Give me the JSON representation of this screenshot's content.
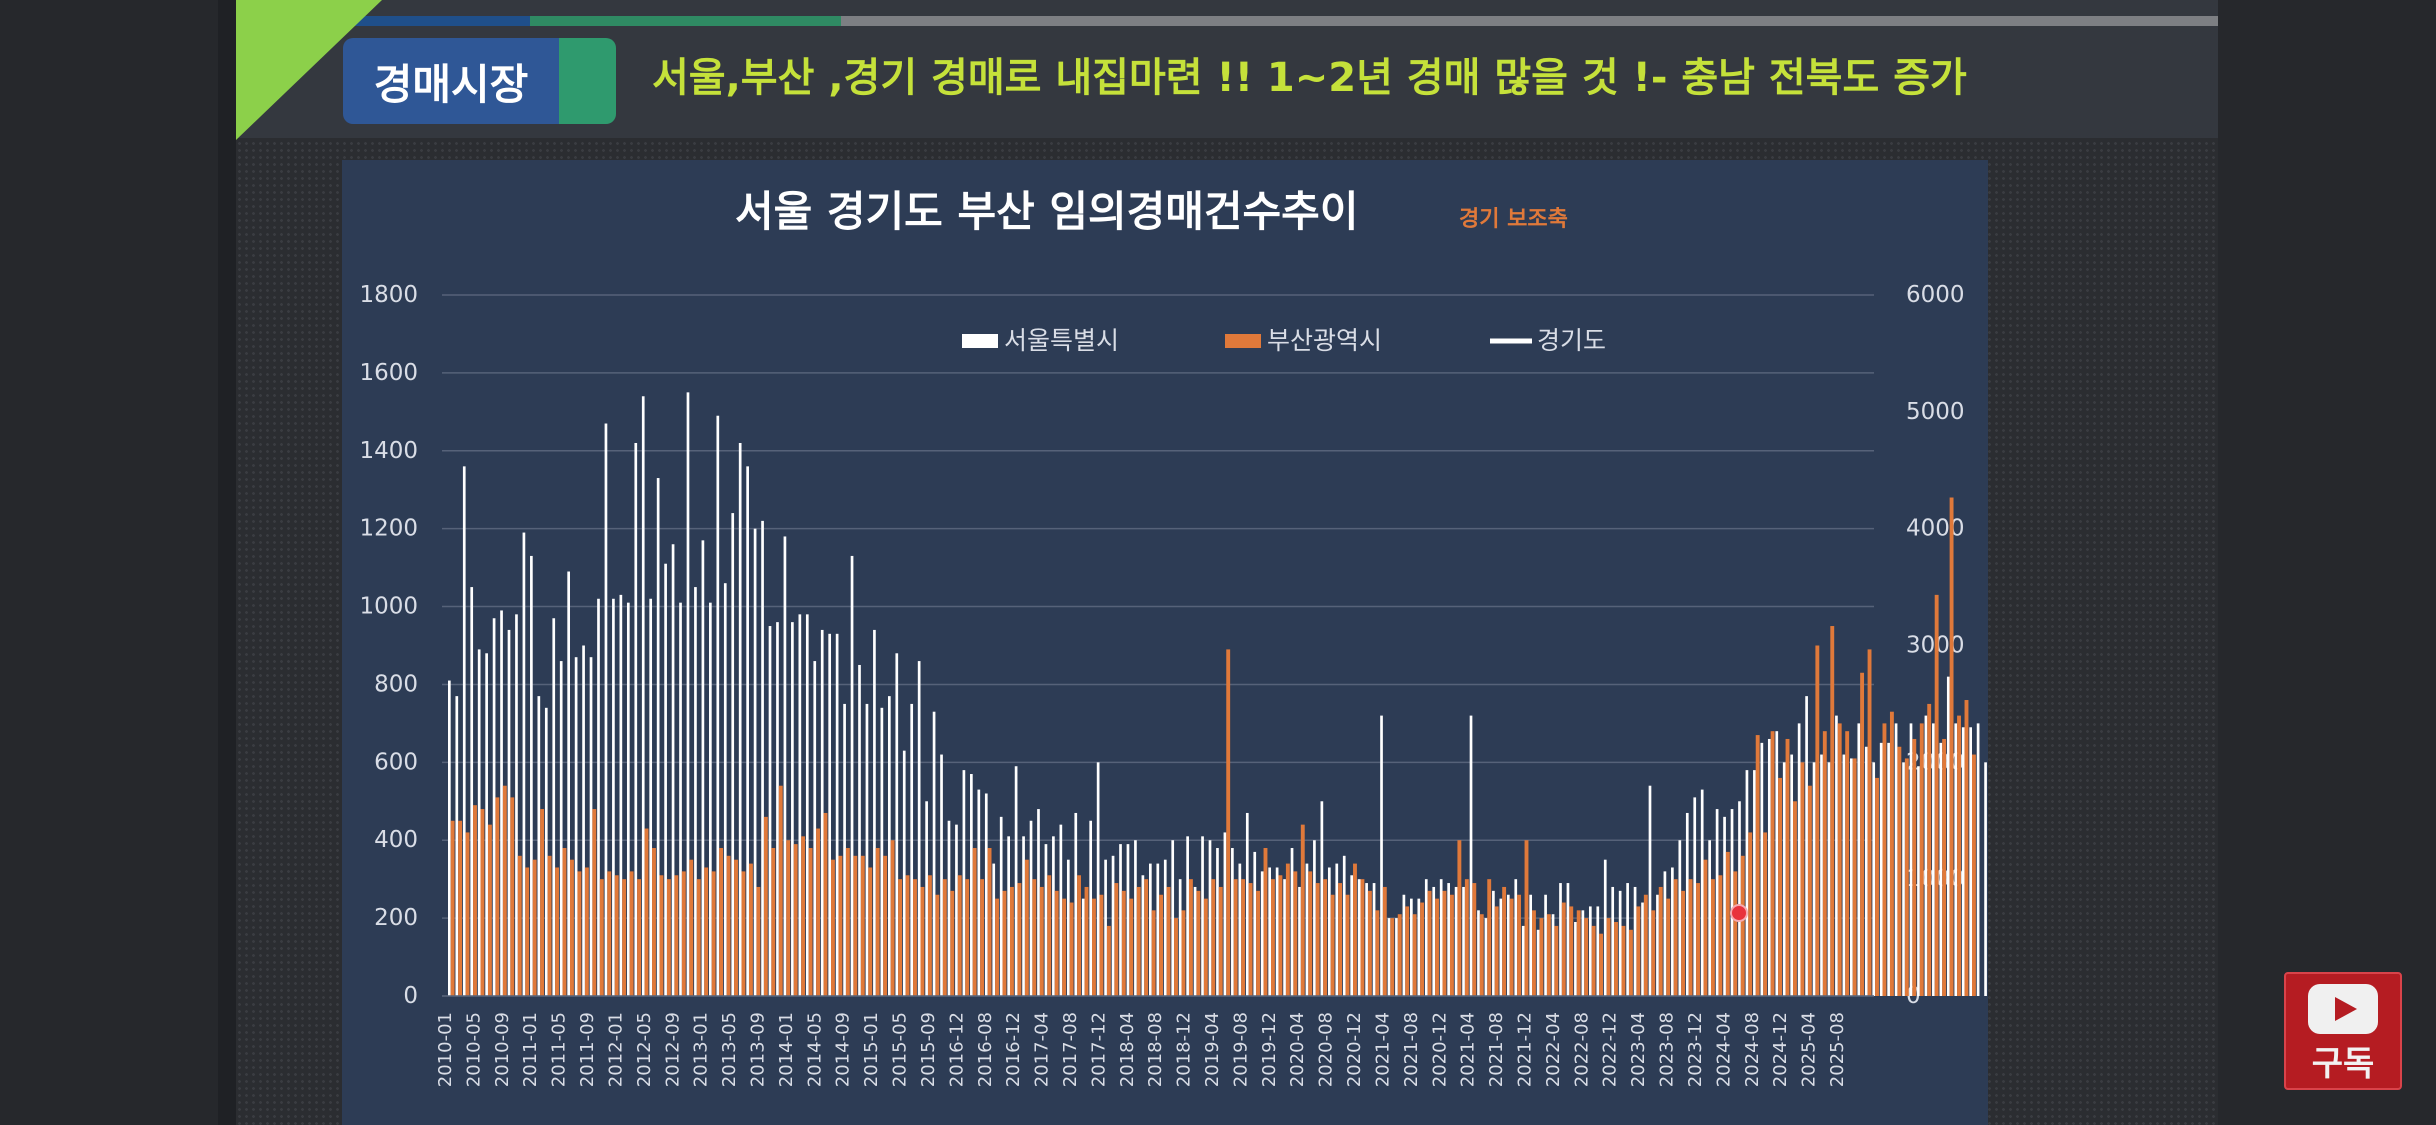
{
  "video": {
    "badge_label": "경매시장",
    "headline": "서울,부산 ,경기  경매로 내집마련 !!  1~2년 경매 많을 것 !- 충남 전북도 증가",
    "subscribe_label": "구독"
  },
  "chart_data": {
    "type": "bar",
    "title": "서울 경기도 부산 임의경매건수추이",
    "subtitle": "경기 보조축",
    "xlabel": "",
    "ylabel": "",
    "ylim": [
      0,
      1800
    ],
    "y_ticks": [
      0,
      200,
      400,
      600,
      800,
      1000,
      1200,
      1400,
      1600,
      1800
    ],
    "y2lim": [
      0,
      6000
    ],
    "y2_ticks": [
      0,
      1000,
      2000,
      3000,
      4000,
      5000,
      6000
    ],
    "grid": true,
    "legend_position": "top-center",
    "start_month": "2010-01",
    "x_tick_labels": [
      "2010-01",
      "2010-05",
      "2010-09",
      "2011-01",
      "2011-05",
      "2011-09",
      "2012-01",
      "2012-05",
      "2012-09",
      "2013-01",
      "2013-05",
      "2013-09",
      "2014-01",
      "2014-05",
      "2014-09",
      "2015-01",
      "2015-05",
      "2015-09",
      "2016-12",
      "2016-08",
      "2016-12",
      "2017-04",
      "2017-08",
      "2017-12",
      "2018-04",
      "2018-08",
      "2018-12",
      "2019-04",
      "2019-08",
      "2019-12",
      "2020-04",
      "2020-08",
      "2020-12",
      "2021-04",
      "2021-08",
      "2020-12",
      "2021-04",
      "2021-08",
      "2021-12",
      "2022-04",
      "2022-08",
      "2022-12",
      "2023-04",
      "2023-08",
      "2023-12",
      "2024-04",
      "2024-08",
      "2024-12",
      "2025-04",
      "2025-08"
    ],
    "colors": {
      "seoul": "#ffffff",
      "busan": "#e0793a",
      "gyeonggi": "#ffffff",
      "text": "#d9dde6",
      "grid": "#566279"
    },
    "series": [
      {
        "name": "서울특별시",
        "kind": "bar",
        "axis": "left",
        "values": [
          810,
          770,
          1360,
          1050,
          890,
          880,
          970,
          990,
          940,
          980,
          1190,
          1130,
          770,
          740,
          970,
          860,
          1090,
          870,
          900,
          870,
          1020,
          1470,
          1020,
          1030,
          1010,
          1420,
          1540,
          1020,
          1330,
          1110,
          1160,
          1010,
          1550,
          1050,
          1170,
          1010,
          1490,
          1060,
          1240,
          1420,
          1360,
          1200,
          1220,
          950,
          960,
          1180,
          960,
          980,
          980,
          860,
          940,
          930,
          930,
          750,
          1130,
          850,
          750,
          940,
          740,
          770,
          880,
          630,
          750,
          860,
          500,
          730,
          620,
          450,
          440,
          580,
          570,
          530,
          520,
          340,
          460,
          410,
          590,
          410,
          450,
          480,
          390,
          410,
          440,
          350,
          470,
          250,
          450,
          600,
          350,
          360,
          390,
          390,
          400,
          310,
          340,
          340,
          350,
          400,
          300,
          410,
          280,
          410,
          400,
          380,
          420,
          380,
          340,
          470,
          370,
          320,
          330,
          330,
          300,
          380,
          280,
          340,
          400,
          500,
          330,
          340,
          360,
          310,
          300,
          290,
          290,
          720,
          200,
          200,
          260,
          250,
          250,
          300,
          280,
          300,
          290,
          280,
          280,
          720,
          220,
          200,
          270,
          250,
          260,
          300,
          180,
          260,
          170,
          260,
          210,
          290,
          290,
          190,
          220,
          230,
          230,
          350,
          280,
          270,
          290,
          280,
          240,
          540,
          260,
          320,
          330,
          400,
          470,
          510,
          530,
          400,
          480,
          460,
          480,
          500,
          580,
          580,
          650,
          660,
          680,
          600,
          620,
          700,
          770,
          600,
          620,
          600,
          720,
          620,
          610,
          700,
          640,
          600,
          650,
          650,
          700,
          600,
          700,
          590,
          720,
          700,
          650,
          820,
          700,
          690,
          690,
          700,
          600,
          600,
          600
        ]
      },
      {
        "name": "부산광역시",
        "kind": "bar",
        "axis": "left",
        "values": [
          450,
          450,
          420,
          490,
          480,
          440,
          510,
          540,
          510,
          360,
          330,
          350,
          480,
          360,
          330,
          380,
          350,
          320,
          330,
          480,
          300,
          320,
          310,
          300,
          320,
          300,
          430,
          380,
          310,
          300,
          310,
          320,
          350,
          300,
          330,
          320,
          380,
          360,
          350,
          320,
          340,
          280,
          460,
          380,
          540,
          400,
          390,
          410,
          380,
          430,
          470,
          350,
          360,
          380,
          360,
          360,
          330,
          380,
          360,
          400,
          300,
          310,
          300,
          280,
          310,
          260,
          300,
          270,
          310,
          300,
          380,
          300,
          380,
          250,
          270,
          280,
          290,
          350,
          300,
          280,
          310,
          270,
          250,
          240,
          310,
          280,
          250,
          260,
          180,
          290,
          270,
          250,
          280,
          300,
          220,
          260,
          280,
          200,
          220,
          300,
          270,
          250,
          300,
          280,
          890,
          300,
          300,
          290,
          270,
          380,
          300,
          310,
          340,
          320,
          440,
          320,
          290,
          300,
          260,
          290,
          260,
          340,
          300,
          270,
          220,
          280,
          200,
          210,
          230,
          210,
          240,
          270,
          250,
          270,
          260,
          400,
          300,
          290,
          210,
          300,
          230,
          280,
          250,
          260,
          400,
          220,
          200,
          210,
          180,
          240,
          230,
          220,
          200,
          180,
          160,
          200,
          190,
          180,
          170,
          230,
          260,
          220,
          280,
          250,
          300,
          270,
          300,
          290,
          350,
          300,
          310,
          370,
          320,
          360,
          420,
          670,
          420,
          680,
          560,
          660,
          500,
          600,
          540,
          900,
          680,
          950,
          700,
          680,
          610,
          830,
          890,
          560,
          700,
          730,
          640,
          610,
          660,
          700,
          750,
          1030,
          660,
          1280,
          720,
          760,
          620
        ]
      },
      {
        "name": "경기도",
        "kind": "line",
        "axis": "right",
        "values": []
      }
    ]
  }
}
